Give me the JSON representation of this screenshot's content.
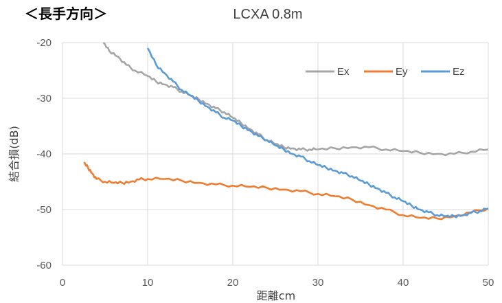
{
  "heading": "＜長手方向＞",
  "chart_data": {
    "type": "line",
    "title": "LCXA 0.8m",
    "xlabel": "距離cm",
    "ylabel": "結合損(dB)",
    "xlim": [
      0,
      50
    ],
    "ylim": [
      -60,
      -20
    ],
    "xticks": [
      0,
      10,
      20,
      30,
      40,
      50
    ],
    "yticks": [
      -20,
      -30,
      -40,
      -50,
      -60
    ],
    "grid": true,
    "legend": "top-right",
    "series": [
      {
        "name": "Ex",
        "color": "#a5a5a5",
        "x": [
          4.8,
          5.5,
          6.5,
          7.5,
          8.5,
          10,
          11,
          12,
          13,
          14,
          15,
          16,
          17,
          18,
          19,
          20,
          21,
          22,
          23,
          24,
          25,
          26,
          27,
          28,
          29,
          30,
          32,
          34,
          36,
          38,
          40,
          42,
          44,
          46,
          48,
          50
        ],
        "y": [
          -20,
          -21.5,
          -22.5,
          -24,
          -25,
          -26,
          -27,
          -27.5,
          -28,
          -28.8,
          -29.5,
          -30.2,
          -31,
          -31.8,
          -32.5,
          -33.5,
          -34.5,
          -35.5,
          -36.5,
          -37.5,
          -38.2,
          -38.8,
          -39,
          -39.2,
          -39.2,
          -39.2,
          -39,
          -38.8,
          -38.8,
          -39.2,
          -39.5,
          -39.8,
          -40,
          -40,
          -39.6,
          -39.2
        ]
      },
      {
        "name": "Ey",
        "color": "#ed7d31",
        "x": [
          2.5,
          3,
          3.5,
          4,
          5,
          6,
          7,
          8,
          9,
          10,
          12,
          14,
          16,
          18,
          20,
          22,
          24,
          26,
          28,
          30,
          32,
          34,
          36,
          38,
          40,
          42,
          44,
          46,
          48,
          50
        ],
        "y": [
          -41.5,
          -42.5,
          -43.5,
          -44.5,
          -45,
          -45.2,
          -45.2,
          -45,
          -44.6,
          -44.5,
          -44.5,
          -44.8,
          -45.2,
          -45.5,
          -45.7,
          -45.9,
          -46.1,
          -46.4,
          -46.7,
          -47.2,
          -47.6,
          -48.2,
          -49.2,
          -50,
          -51,
          -51.5,
          -51.6,
          -51.2,
          -50.5,
          -49.8
        ]
      },
      {
        "name": "Ez",
        "color": "#5b9bd5",
        "x": [
          10,
          11,
          12,
          13,
          14,
          15,
          16,
          17,
          18,
          19,
          20,
          21,
          22,
          23,
          24,
          25,
          26,
          27,
          28,
          29,
          30,
          31,
          32,
          33,
          34,
          35,
          36,
          37,
          38,
          39,
          40,
          41,
          42,
          43,
          44,
          45,
          46,
          47,
          48,
          49,
          50
        ],
        "y": [
          -21,
          -24,
          -25.5,
          -27,
          -28.5,
          -29.5,
          -30.5,
          -31.5,
          -32.5,
          -33.5,
          -34,
          -35,
          -35.8,
          -36.8,
          -37.5,
          -38.5,
          -39.2,
          -40,
          -40.5,
          -41.3,
          -42,
          -42.5,
          -43,
          -43.5,
          -44,
          -44.8,
          -45.5,
          -46.2,
          -47,
          -47.8,
          -48.5,
          -49.3,
          -50,
          -50.5,
          -51,
          -51.2,
          -51.2,
          -51,
          -50.6,
          -50.3,
          -49.8
        ]
      }
    ]
  }
}
